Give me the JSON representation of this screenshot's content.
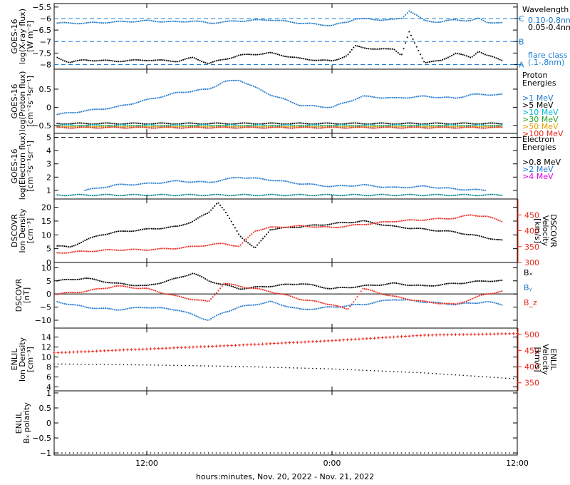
{
  "colors": {
    "black": "#000000",
    "xray_long": "#1a78c8",
    "ref_line": "#1f7fd6",
    "p1": "#1f77d0",
    "p5": "#000000",
    "p10": "#00b8d8",
    "p30": "#2ca02c",
    "p50": "#e8a000",
    "p100": "#e8281c",
    "e08": "#000000",
    "e2": "#1f77d0",
    "e4": "#e000e0",
    "red": "#e8281c",
    "blue": "#1f77d0"
  },
  "x_axis": {
    "start_hour": 6.0,
    "end_hour": 36.0,
    "ticks": [
      {
        "hour": 12,
        "label": "12:00"
      },
      {
        "hour": 24,
        "label": "0:00"
      },
      {
        "hour": 36,
        "label": "12:00"
      }
    ],
    "footer": "hours:minutes, Nov. 20, 2022 - Nov. 21, 2022"
  },
  "chart_data": [
    {
      "type": "scatter",
      "id": "xray",
      "ylabel": [
        "GOES-16",
        "log(X-ray flux)",
        "[W m⁻²]"
      ],
      "ylim": [
        -8.2,
        -5.35
      ],
      "yticks": [
        -5.5,
        -6.0,
        -6.5,
        -7.0,
        -7.5,
        -8.0
      ],
      "ref_lines": [
        {
          "y": -6.0,
          "label": "C"
        },
        {
          "y": -7.0,
          "label": "B"
        },
        {
          "y": -8.0,
          "label": "A"
        }
      ],
      "legend_title": "Wavelength",
      "legend": [
        {
          "label": "0.10-0.8nm",
          "color": "#1a78c8"
        },
        {
          "label": "0.05-0.4nm",
          "color": "#000000"
        }
      ],
      "note": [
        "flare class",
        "(.1-.8nm)"
      ],
      "series": [
        {
          "name": "0.10-0.8nm",
          "color": "#1a78c8",
          "x": [
            6.2,
            8,
            10,
            12,
            14,
            15,
            16,
            18,
            20,
            22,
            24,
            25,
            25.5,
            27,
            28,
            28.5,
            29,
            30,
            31,
            32,
            33,
            33.5,
            34,
            35
          ],
          "y": [
            -6.2,
            -6.2,
            -6.15,
            -6.1,
            -6.15,
            -6.1,
            -6.2,
            -6.1,
            -6.05,
            -6.2,
            -6.3,
            -6.15,
            -6.0,
            -6.05,
            -6.05,
            -6.0,
            -5.65,
            -6.1,
            -6.15,
            -6.05,
            -6.1,
            -6.0,
            -6.15,
            -6.2
          ]
        },
        {
          "name": "0.05-0.4nm",
          "color": "#000000",
          "x": [
            6.2,
            7,
            8,
            10,
            12,
            14,
            15,
            16,
            18,
            20,
            22,
            24,
            25,
            25.5,
            27,
            28,
            28.5,
            29,
            30,
            31,
            32,
            33,
            33.5,
            34,
            35
          ],
          "y": [
            -7.7,
            -7.9,
            -7.8,
            -7.85,
            -7.8,
            -7.85,
            -7.7,
            -7.95,
            -7.6,
            -7.5,
            -7.75,
            -7.85,
            -7.6,
            -7.2,
            -7.35,
            -7.3,
            -7.6,
            -6.6,
            -7.9,
            -7.85,
            -7.5,
            -7.7,
            -7.4,
            -7.6,
            -7.8
          ]
        }
      ]
    },
    {
      "type": "scatter",
      "id": "proton",
      "ylabel": [
        "GOES-16",
        "log(Proton flux)",
        "[cm⁻²s⁻¹sr⁻¹]"
      ],
      "ylim": [
        -0.72,
        1.05
      ],
      "yticks": [
        0.5,
        0.0,
        -0.5
      ],
      "legend_title": "Proton Energies",
      "legend": [
        {
          "label": ">1 MeV",
          "color": "#1f77d0"
        },
        {
          "label": ">5 MeV",
          "color": "#000000"
        },
        {
          "label": ">10 MeV",
          "color": "#00b8d8"
        },
        {
          "label": ">30 MeV",
          "color": "#2ca02c"
        },
        {
          "label": ">50 MeV",
          "color": "#e8a000"
        },
        {
          "label": ">100 MeV",
          "color": "#e8281c"
        }
      ],
      "series": [
        {
          "name": ">1 MeV",
          "color": "#1f77d0",
          "x": [
            6.2,
            8,
            10,
            12,
            14,
            16,
            17,
            18,
            20,
            22,
            24,
            26,
            28,
            30,
            32,
            33,
            34,
            35
          ],
          "y": [
            -0.2,
            -0.1,
            0.0,
            0.2,
            0.4,
            0.5,
            0.7,
            0.75,
            0.35,
            0.05,
            0.0,
            0.3,
            0.25,
            0.3,
            0.25,
            0.35,
            0.35,
            0.35
          ]
        },
        {
          "name": ">5 MeV",
          "color": "#000000",
          "x": [
            6.2,
            35
          ],
          "y": [
            -0.45,
            -0.45
          ]
        },
        {
          "name": ">10 MeV",
          "color": "#00b8d8",
          "x": [
            6.2,
            35
          ],
          "y": [
            -0.5,
            -0.5
          ]
        },
        {
          "name": ">30 MeV",
          "color": "#2ca02c",
          "x": [
            6.2,
            35
          ],
          "y": [
            -0.52,
            -0.52
          ]
        },
        {
          "name": ">50 MeV",
          "color": "#e8a000",
          "x": [
            6.2,
            35
          ],
          "y": [
            -0.54,
            -0.54
          ]
        },
        {
          "name": ">100 MeV",
          "color": "#e8281c",
          "x": [
            6.2,
            35
          ],
          "y": [
            -0.56,
            -0.56
          ]
        }
      ]
    },
    {
      "type": "scatter",
      "id": "electron",
      "ylabel": [
        "GOES-16",
        "log(Electron flux)",
        "[cm⁻²s⁻¹sr⁻¹]"
      ],
      "ylim": [
        0.35,
        5.3
      ],
      "yticks": [
        5,
        4,
        3,
        2,
        1
      ],
      "ref_lines": [
        {
          "y": 5.0,
          "label": ""
        }
      ],
      "legend_title": "Electron Energies",
      "legend": [
        {
          "label": ">0.8 MeV",
          "color": "#000000"
        },
        {
          "label": ">2 MeV",
          "color": "#1f77d0"
        },
        {
          "label": ">4 MeV",
          "color": "#e000e0"
        }
      ],
      "series": [
        {
          "name": ">2 MeV",
          "color": "#1f77d0",
          "x": [
            8,
            10,
            12,
            14,
            16,
            18,
            20,
            22,
            24,
            26,
            28,
            30,
            32,
            34
          ],
          "y": [
            1.0,
            1.4,
            1.5,
            1.7,
            1.6,
            2.0,
            1.8,
            1.5,
            1.3,
            1.4,
            1.2,
            1.3,
            1.1,
            1.0
          ]
        },
        {
          "name": ">0.8 MeV",
          "color": "#008080",
          "x": [
            6.2,
            35
          ],
          "y": [
            0.65,
            0.65
          ]
        }
      ]
    },
    {
      "type": "scatter",
      "id": "dscovr_plasma",
      "ylabel": [
        "DSCOVR",
        "Ion Density",
        "[cm⁻³]"
      ],
      "ylabel_right": [
        "DSCOVR",
        "Velocity",
        "[km/s]"
      ],
      "ylim": [
        0,
        23
      ],
      "yticks": [
        20,
        15,
        10,
        5,
        0
      ],
      "ylim_right": [
        300,
        500
      ],
      "yticks_right": [
        450,
        400,
        350,
        300
      ],
      "series": [
        {
          "name": "Density",
          "color": "#000000",
          "axis": "left",
          "x": [
            6.2,
            7,
            8,
            9,
            10,
            12,
            14,
            15,
            16,
            16.6,
            17,
            18,
            19,
            20,
            22,
            24,
            26,
            28,
            30,
            32,
            33,
            34,
            35
          ],
          "y": [
            6,
            5.5,
            8,
            10,
            11,
            12,
            13,
            15,
            18,
            22,
            19,
            10,
            5,
            12,
            13,
            14,
            15,
            13,
            12,
            11,
            10,
            9,
            8
          ]
        },
        {
          "name": "Velocity",
          "color": "#e8281c",
          "axis": "right",
          "x": [
            6.2,
            8,
            10,
            12,
            14,
            16,
            17,
            18,
            19,
            20,
            22,
            24,
            26,
            28,
            30,
            32,
            33,
            34,
            35
          ],
          "y": [
            330,
            335,
            340,
            340,
            345,
            355,
            360,
            350,
            400,
            410,
            415,
            410,
            420,
            430,
            435,
            440,
            450,
            445,
            430
          ]
        }
      ]
    },
    {
      "type": "scatter",
      "id": "dscovr_mag",
      "ylabel": [
        "DSCOVR",
        "[nT]"
      ],
      "ylim": [
        -13,
        12
      ],
      "yticks": [
        10,
        5,
        0,
        -5,
        -10
      ],
      "zero_line": true,
      "legend": [
        {
          "label": "Bₓ",
          "color": "#000000"
        },
        {
          "label": "Bᵧ",
          "color": "#1f77d0"
        },
        {
          "label": "B_z",
          "color": "#e8281c"
        }
      ],
      "series": [
        {
          "name": "Bₓ",
          "color": "#000000",
          "x": [
            6.2,
            8,
            10,
            12,
            14,
            15,
            16,
            18,
            20,
            22,
            24,
            26,
            28,
            30,
            32,
            34,
            35
          ],
          "y": [
            5,
            6,
            4,
            3,
            6,
            8,
            5,
            2,
            3,
            4,
            2,
            3,
            4,
            3,
            4,
            5,
            5
          ]
        },
        {
          "name": "Bᵧ",
          "color": "#1f77d0",
          "x": [
            6.2,
            8,
            10,
            12,
            14,
            15,
            16,
            17,
            18,
            20,
            22,
            24,
            26,
            28,
            30,
            32,
            34,
            35
          ],
          "y": [
            -3,
            -5,
            -6,
            -5,
            -6,
            -8,
            -10,
            -7,
            -5,
            -3,
            -6,
            -5,
            -4,
            -2,
            -3,
            -4,
            -3,
            -4
          ]
        },
        {
          "name": "B_z",
          "color": "#e8281c",
          "x": [
            6.2,
            8,
            10,
            12,
            14,
            16,
            17,
            18,
            20,
            22,
            24,
            25,
            26,
            28,
            30,
            32,
            34,
            35
          ],
          "y": [
            0,
            1,
            3,
            2,
            -1,
            -3,
            4,
            3,
            1,
            -2,
            -4,
            -6,
            2,
            -1,
            -3,
            -4,
            0,
            1
          ]
        }
      ]
    },
    {
      "type": "line",
      "id": "enlil_plasma",
      "ylabel": [
        "ENLIL",
        "Ion Density",
        "[cm⁻³]"
      ],
      "ylabel_right": [
        "ENLIL",
        "Velocity",
        "[km/s]"
      ],
      "ylim": [
        3.2,
        15.8
      ],
      "yticks": [
        14,
        12,
        10,
        8,
        6,
        4
      ],
      "ylim_right": [
        325,
        520
      ],
      "yticks_right": [
        500,
        450,
        400,
        350
      ],
      "series": [
        {
          "name": "Density",
          "color": "#000000",
          "axis": "left",
          "x": [
            6,
            12,
            18,
            24,
            30,
            36
          ],
          "y": [
            8.6,
            8.4,
            8.1,
            7.6,
            6.8,
            5.6
          ]
        },
        {
          "name": "Velocity",
          "color": "#e8281c",
          "axis": "right",
          "x": [
            6,
            12,
            18,
            24,
            30,
            36
          ],
          "y": [
            443,
            455,
            467,
            481,
            498,
            503
          ]
        }
      ]
    },
    {
      "type": "line",
      "id": "enlil_bx",
      "ylabel": [
        "ENLIL",
        "Bₓ polarity"
      ],
      "ylim": [
        -1.07,
        1.07
      ],
      "yticks": [
        1.0,
        0.5,
        0.0,
        -0.5,
        -1.0
      ],
      "series": [
        {
          "name": "Bₓ polarity",
          "color": "#000000",
          "x": [
            6,
            36
          ],
          "y": [
            -1.0,
            -1.0
          ]
        }
      ]
    }
  ]
}
